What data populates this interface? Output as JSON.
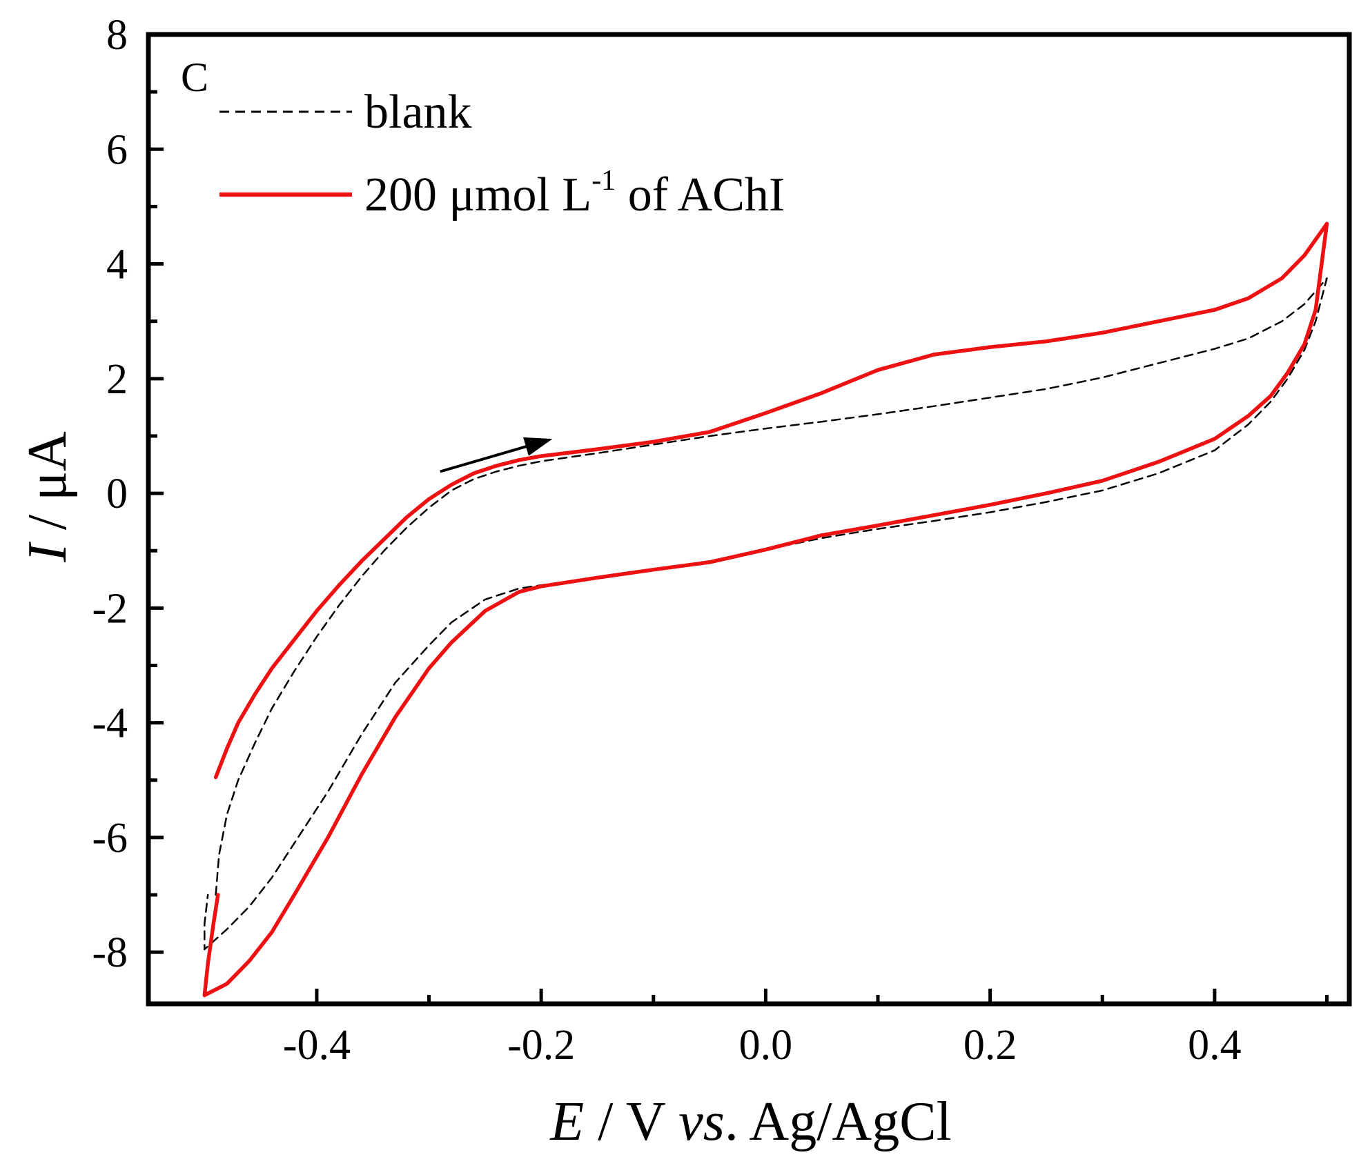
{
  "chart_data": {
    "type": "line",
    "panel_label": "C",
    "xlabel": {
      "var": "E",
      "rest_a": " / V ",
      "vs": "vs",
      "rest_b": ". Ag/AgCl"
    },
    "ylabel": {
      "var": "I",
      "rest": " / μA"
    },
    "xlim": [
      -0.55,
      0.52
    ],
    "ylim": [
      -8.9,
      8
    ],
    "xticks": [
      -0.4,
      -0.2,
      0.0,
      0.2,
      0.4
    ],
    "xtick_labels": [
      "-0.4",
      "-0.2",
      "0.0",
      "0.2",
      "0.4"
    ],
    "yticks": [
      -8,
      -6,
      -4,
      -2,
      0,
      2,
      4,
      6,
      8
    ],
    "ytick_labels": [
      "-8",
      "-6",
      "-4",
      "-2",
      "0",
      "2",
      "4",
      "6",
      "8"
    ],
    "legend": {
      "position": "top-left",
      "entries": [
        {
          "label": "blank",
          "style": "dashed",
          "color": "#000000"
        },
        {
          "label_main": "200 μmol L",
          "label_sup": "-1",
          "label_tail": " of AChI",
          "style": "solid",
          "color": "#ee1111"
        }
      ]
    },
    "annotation": {
      "type": "arrow",
      "from": [
        -0.29,
        0.38
      ],
      "to": [
        -0.19,
        0.95
      ],
      "color": "#000000"
    },
    "series": [
      {
        "name": "blank",
        "color": "#000000",
        "style": "dashed",
        "points": [
          [
            -0.49,
            -7.0
          ],
          [
            -0.487,
            -6.3
          ],
          [
            -0.48,
            -5.6
          ],
          [
            -0.47,
            -5.0
          ],
          [
            -0.455,
            -4.35
          ],
          [
            -0.44,
            -3.75
          ],
          [
            -0.42,
            -3.1
          ],
          [
            -0.4,
            -2.5
          ],
          [
            -0.38,
            -1.95
          ],
          [
            -0.36,
            -1.45
          ],
          [
            -0.34,
            -1.0
          ],
          [
            -0.32,
            -0.6
          ],
          [
            -0.3,
            -0.25
          ],
          [
            -0.28,
            0.05
          ],
          [
            -0.26,
            0.25
          ],
          [
            -0.24,
            0.38
          ],
          [
            -0.22,
            0.48
          ],
          [
            -0.2,
            0.56
          ],
          [
            -0.15,
            0.7
          ],
          [
            -0.1,
            0.85
          ],
          [
            -0.05,
            1.0
          ],
          [
            0.0,
            1.13
          ],
          [
            0.05,
            1.25
          ],
          [
            0.1,
            1.38
          ],
          [
            0.15,
            1.52
          ],
          [
            0.2,
            1.67
          ],
          [
            0.25,
            1.82
          ],
          [
            0.3,
            2.02
          ],
          [
            0.35,
            2.27
          ],
          [
            0.4,
            2.52
          ],
          [
            0.43,
            2.7
          ],
          [
            0.46,
            3.0
          ],
          [
            0.48,
            3.3
          ],
          [
            0.5,
            3.75
          ],
          [
            0.49,
            3.0
          ],
          [
            0.48,
            2.5
          ],
          [
            0.465,
            2.0
          ],
          [
            0.45,
            1.6
          ],
          [
            0.43,
            1.2
          ],
          [
            0.4,
            0.75
          ],
          [
            0.35,
            0.35
          ],
          [
            0.3,
            0.05
          ],
          [
            0.25,
            -0.15
          ],
          [
            0.2,
            -0.33
          ],
          [
            0.15,
            -0.48
          ],
          [
            0.1,
            -0.62
          ],
          [
            0.05,
            -0.78
          ],
          [
            0.0,
            -0.98
          ],
          [
            -0.05,
            -1.18
          ],
          [
            -0.1,
            -1.33
          ],
          [
            -0.15,
            -1.47
          ],
          [
            -0.2,
            -1.6
          ],
          [
            -0.22,
            -1.66
          ],
          [
            -0.25,
            -1.85
          ],
          [
            -0.28,
            -2.25
          ],
          [
            -0.3,
            -2.65
          ],
          [
            -0.33,
            -3.3
          ],
          [
            -0.36,
            -4.2
          ],
          [
            -0.39,
            -5.2
          ],
          [
            -0.42,
            -6.1
          ],
          [
            -0.44,
            -6.7
          ],
          [
            -0.46,
            -7.2
          ],
          [
            -0.48,
            -7.6
          ],
          [
            -0.5,
            -7.95
          ],
          [
            -0.5,
            -7.5
          ],
          [
            -0.497,
            -7.0
          ]
        ]
      },
      {
        "name": "200 μmol L-1 of AChI",
        "color": "#ee1111",
        "style": "solid",
        "points": [
          [
            -0.49,
            -4.95
          ],
          [
            -0.48,
            -4.45
          ],
          [
            -0.47,
            -4.0
          ],
          [
            -0.455,
            -3.5
          ],
          [
            -0.44,
            -3.05
          ],
          [
            -0.42,
            -2.55
          ],
          [
            -0.4,
            -2.05
          ],
          [
            -0.38,
            -1.6
          ],
          [
            -0.36,
            -1.18
          ],
          [
            -0.34,
            -0.8
          ],
          [
            -0.32,
            -0.42
          ],
          [
            -0.3,
            -0.1
          ],
          [
            -0.28,
            0.15
          ],
          [
            -0.26,
            0.35
          ],
          [
            -0.24,
            0.48
          ],
          [
            -0.22,
            0.58
          ],
          [
            -0.2,
            0.65
          ],
          [
            -0.15,
            0.77
          ],
          [
            -0.1,
            0.9
          ],
          [
            -0.05,
            1.07
          ],
          [
            0.0,
            1.4
          ],
          [
            0.05,
            1.75
          ],
          [
            0.1,
            2.15
          ],
          [
            0.15,
            2.42
          ],
          [
            0.2,
            2.55
          ],
          [
            0.25,
            2.65
          ],
          [
            0.3,
            2.8
          ],
          [
            0.35,
            3.0
          ],
          [
            0.4,
            3.2
          ],
          [
            0.43,
            3.4
          ],
          [
            0.46,
            3.75
          ],
          [
            0.48,
            4.15
          ],
          [
            0.5,
            4.7
          ],
          [
            0.49,
            3.2
          ],
          [
            0.48,
            2.6
          ],
          [
            0.465,
            2.1
          ],
          [
            0.45,
            1.7
          ],
          [
            0.43,
            1.35
          ],
          [
            0.4,
            0.95
          ],
          [
            0.35,
            0.55
          ],
          [
            0.3,
            0.22
          ],
          [
            0.25,
            0.0
          ],
          [
            0.2,
            -0.2
          ],
          [
            0.15,
            -0.38
          ],
          [
            0.1,
            -0.56
          ],
          [
            0.05,
            -0.73
          ],
          [
            0.0,
            -0.98
          ],
          [
            -0.05,
            -1.2
          ],
          [
            -0.1,
            -1.33
          ],
          [
            -0.15,
            -1.47
          ],
          [
            -0.2,
            -1.62
          ],
          [
            -0.22,
            -1.72
          ],
          [
            -0.25,
            -2.05
          ],
          [
            -0.28,
            -2.6
          ],
          [
            -0.3,
            -3.05
          ],
          [
            -0.33,
            -3.9
          ],
          [
            -0.36,
            -4.9
          ],
          [
            -0.39,
            -6.0
          ],
          [
            -0.42,
            -7.0
          ],
          [
            -0.44,
            -7.65
          ],
          [
            -0.46,
            -8.15
          ],
          [
            -0.48,
            -8.55
          ],
          [
            -0.5,
            -8.75
          ],
          [
            -0.497,
            -8.2
          ],
          [
            -0.492,
            -7.5
          ],
          [
            -0.488,
            -7.0
          ]
        ]
      }
    ]
  }
}
